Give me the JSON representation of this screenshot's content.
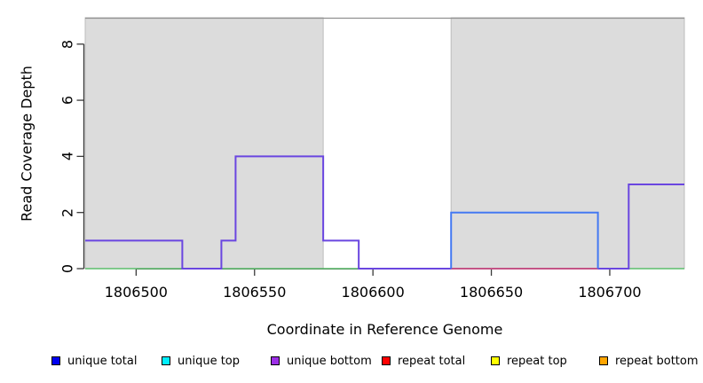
{
  "chart_data": {
    "type": "line",
    "title": "",
    "xlabel": "Coordinate in Reference Genome",
    "ylabel": "Read Coverage Depth",
    "xlim": [
      1806478.5,
      1806731.5
    ],
    "ylim": [
      0,
      8.94
    ],
    "x_ticks": [
      1806500,
      1806550,
      1806600,
      1806650,
      1806700
    ],
    "y_ticks": [
      0,
      2,
      4,
      6,
      8
    ],
    "grid": false,
    "legend_position": "bottom",
    "shaded_regions": [
      {
        "name": "shaded-region-1",
        "x0": 1806478.5,
        "x1": 1806579,
        "fill": "#dcdcdc",
        "border": "#bdbdbd"
      },
      {
        "name": "shaded-region-2",
        "x0": 1806633,
        "x1": 1806731.5,
        "fill": "#dcdcdc",
        "border": "#bdbdbd"
      }
    ],
    "frame_top_color": "#919191",
    "axis_color": "#3a3a3a",
    "series": [
      {
        "name": "baseline-zero-green",
        "color": "#5cbd6c",
        "width": 1.6,
        "points": [
          [
            1806478.5,
            0
          ],
          [
            1806731.5,
            0
          ]
        ]
      },
      {
        "name": "unique-bottom-purple",
        "color": "#6a46e0",
        "width": 2,
        "points": [
          [
            1806478.5,
            1
          ],
          [
            1806519.5,
            1
          ],
          [
            1806519.5,
            0
          ],
          [
            1806536,
            0
          ],
          [
            1806536,
            1
          ],
          [
            1806542,
            1
          ],
          [
            1806542,
            4
          ],
          [
            1806579,
            4
          ],
          [
            1806579,
            1
          ],
          [
            1806594,
            1
          ],
          [
            1806594,
            0
          ],
          [
            1806708,
            0
          ],
          [
            1806708,
            3
          ],
          [
            1806731.5,
            3
          ]
        ]
      },
      {
        "name": "repeat-total-zero-red",
        "color": "#e25868",
        "width": 1.6,
        "points": [
          [
            1806633,
            0
          ],
          [
            1806695,
            0
          ]
        ]
      },
      {
        "name": "unique-coverage-blue",
        "color": "#4479f2",
        "width": 2,
        "points": [
          [
            1806633,
            0
          ],
          [
            1806633,
            2
          ],
          [
            1806695,
            2
          ],
          [
            1806695,
            0
          ]
        ]
      }
    ],
    "legend": [
      {
        "label": "unique total",
        "color": "#0000f0"
      },
      {
        "label": "unique top",
        "color": "#00eeff"
      },
      {
        "label": "unique bottom",
        "color": "#9c2fe6"
      },
      {
        "label": "repeat total",
        "color": "#ff0000"
      },
      {
        "label": "repeat top",
        "color": "#ffff00"
      },
      {
        "label": "repeat bottom",
        "color": "#ffa500"
      }
    ]
  }
}
